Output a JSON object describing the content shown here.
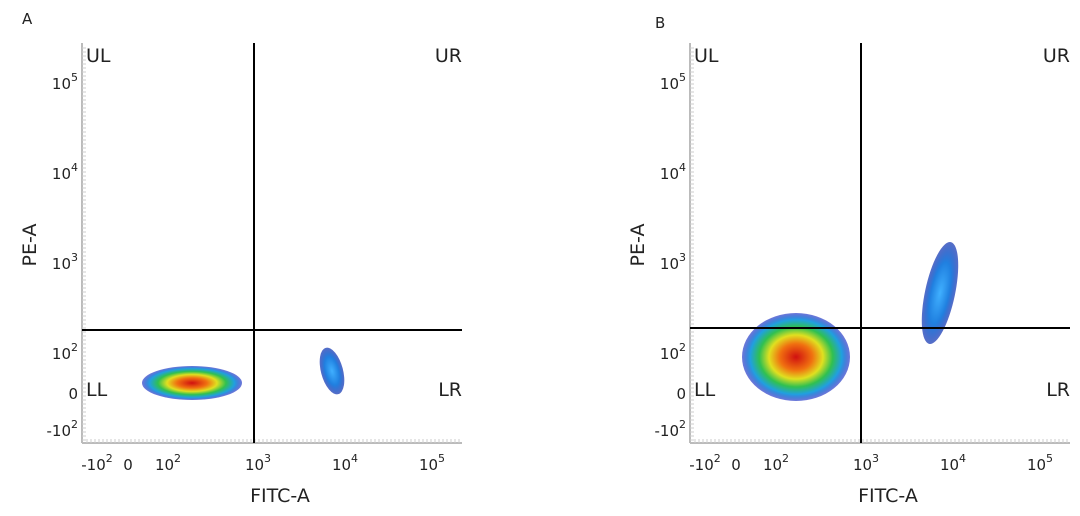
{
  "panels": [
    {
      "label": "A",
      "xlabel": "FITC-A",
      "ylabel": "PE-A",
      "quadrants": [
        "UL",
        "UR",
        "LL",
        "LR"
      ],
      "xticks": [
        {
          "base": "-10",
          "exp": "2"
        },
        {
          "base": "0"
        },
        {
          "base": "10",
          "exp": "2"
        },
        {
          "base": "10",
          "exp": "3"
        },
        {
          "base": "10",
          "exp": "4"
        },
        {
          "base": "10",
          "exp": "5"
        }
      ],
      "yticks": [
        {
          "base": "10",
          "exp": "5"
        },
        {
          "base": "10",
          "exp": "4"
        },
        {
          "base": "10",
          "exp": "3"
        },
        {
          "base": "10",
          "exp": "2"
        },
        {
          "base": "0"
        },
        {
          "base": "-10",
          "exp": "2"
        }
      ]
    },
    {
      "label": "B",
      "xlabel": "FITC-A",
      "ylabel": "PE-A",
      "quadrants": [
        "UL",
        "UR",
        "LL",
        "LR"
      ],
      "xticks": [
        {
          "base": "-10",
          "exp": "2"
        },
        {
          "base": "0"
        },
        {
          "base": "10",
          "exp": "2"
        },
        {
          "base": "10",
          "exp": "3"
        },
        {
          "base": "10",
          "exp": "4"
        },
        {
          "base": "10",
          "exp": "5"
        }
      ],
      "yticks": [
        {
          "base": "10",
          "exp": "5"
        },
        {
          "base": "10",
          "exp": "4"
        },
        {
          "base": "10",
          "exp": "3"
        },
        {
          "base": "10",
          "exp": "2"
        },
        {
          "base": "0"
        },
        {
          "base": "-10",
          "exp": "2"
        }
      ]
    }
  ]
}
